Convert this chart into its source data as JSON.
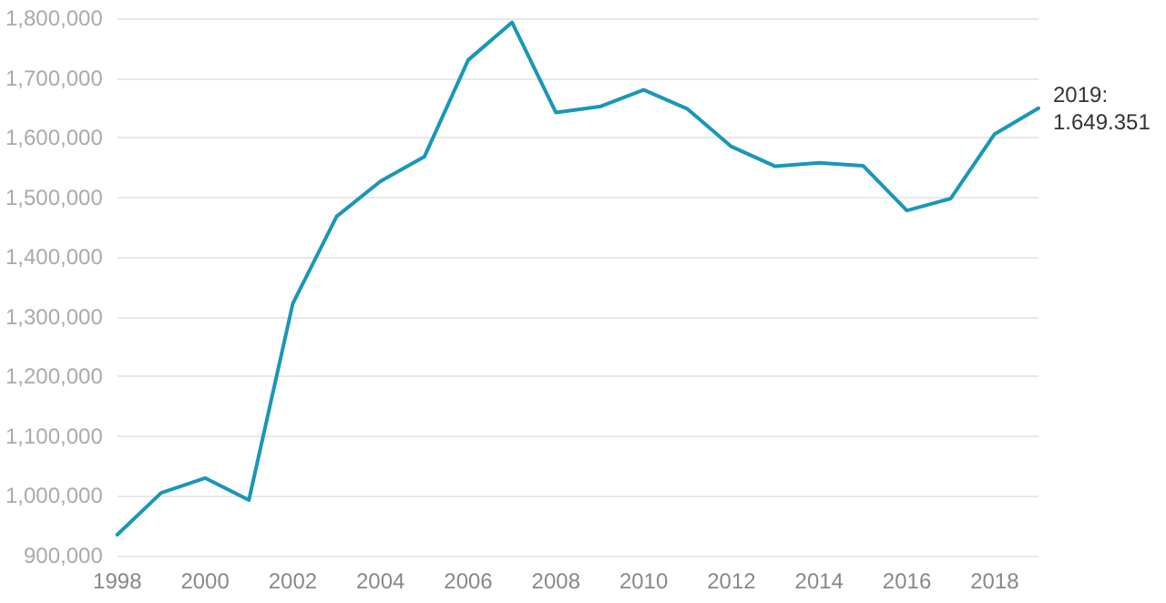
{
  "chart_data": {
    "type": "line",
    "x": [
      1998,
      1999,
      2000,
      2001,
      2002,
      2003,
      2004,
      2005,
      2006,
      2007,
      2008,
      2009,
      2010,
      2011,
      2012,
      2013,
      2014,
      2015,
      2016,
      2017,
      2018,
      2019
    ],
    "series": [
      {
        "color": "#1a96b8",
        "values": [
          935000,
          1005000,
          1030000,
          993000,
          1322000,
          1468000,
          1527000,
          1568000,
          1730000,
          1793000,
          1642000,
          1652000,
          1680000,
          1648000,
          1585000,
          1552000,
          1558000,
          1553000,
          1478000,
          1498000,
          1606000,
          1649351
        ]
      }
    ],
    "xlim": [
      1998,
      2019
    ],
    "xticks": [
      1998,
      2000,
      2002,
      2004,
      2006,
      2008,
      2010,
      2012,
      2014,
      2016,
      2018
    ],
    "ylim": [
      900000,
      1800000
    ],
    "yticks": [
      {
        "value": 900000,
        "label": "900,000"
      },
      {
        "value": 1000000,
        "label": "1,000,000"
      },
      {
        "value": 1100000,
        "label": "1,100,000"
      },
      {
        "value": 1200000,
        "label": "1,200,000"
      },
      {
        "value": 1300000,
        "label": "1,300,000"
      },
      {
        "value": 1400000,
        "label": "1,400,000"
      },
      {
        "value": 1500000,
        "label": "1,500,000"
      },
      {
        "value": 1600000,
        "label": "1,600,000"
      },
      {
        "value": 1700000,
        "label": "1,700,000"
      },
      {
        "value": 1800000,
        "label": "1,800,000"
      }
    ],
    "grid": "y",
    "marker": "none",
    "line_style": "solid",
    "annotations": [
      {
        "text": "2019:\n1.649.351",
        "x": 2019,
        "y": 1649351
      }
    ]
  }
}
